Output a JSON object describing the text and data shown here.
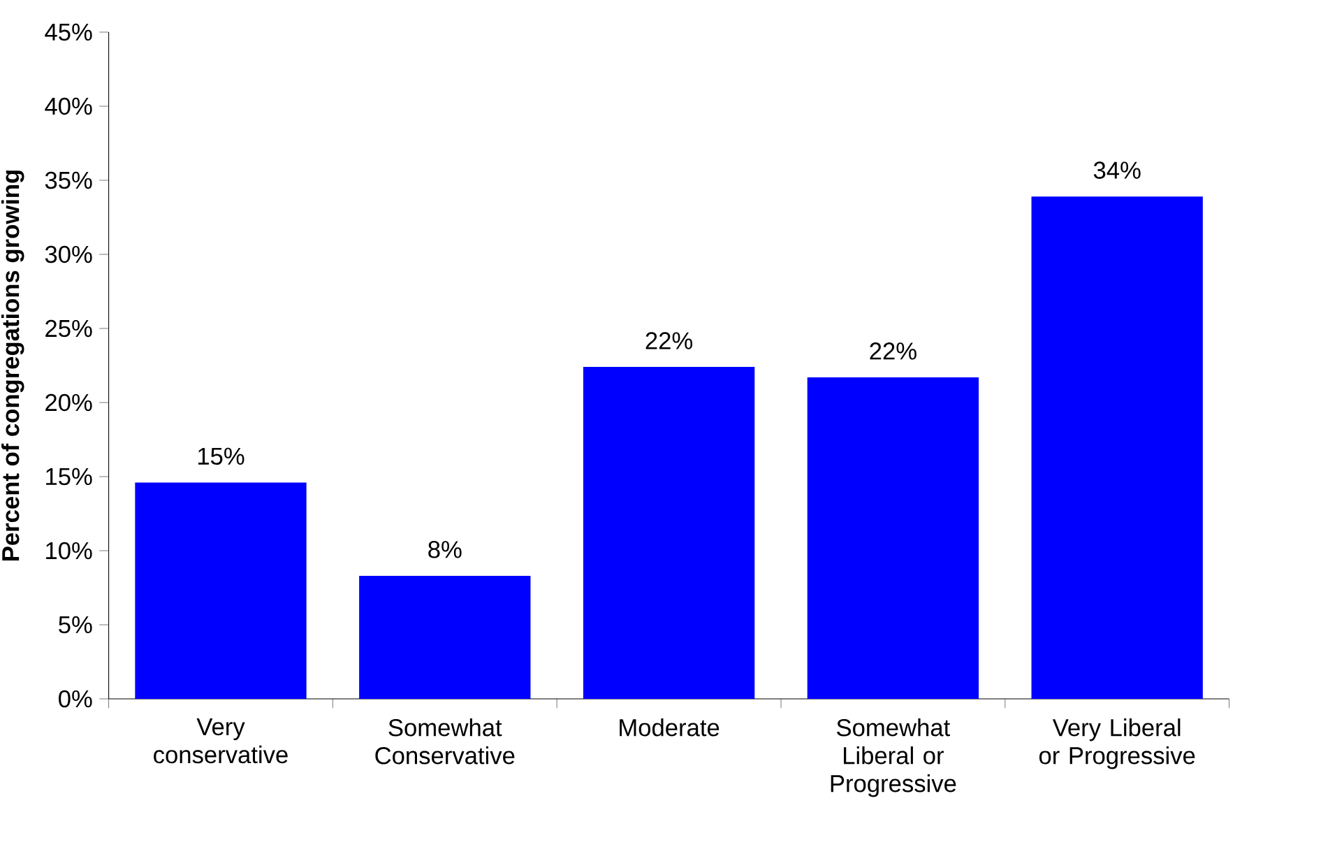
{
  "chart_data": {
    "type": "bar",
    "ylabel": "Percent of congregations growing",
    "categories": [
      "Very conservative",
      "Somewhat Conservative",
      "Moderate",
      "Somewhat Liberal or Progressive",
      "Very Liberal or Progressive"
    ],
    "values": [
      14.6,
      8.3,
      22.4,
      21.7,
      33.9
    ],
    "value_labels": [
      "15%",
      "8%",
      "22%",
      "22%",
      "34%"
    ],
    "color": "#0000ff",
    "ylim": [
      0,
      45
    ],
    "yticks": [
      {
        "value": 0,
        "label": "0%"
      },
      {
        "value": 5,
        "label": "5%"
      },
      {
        "value": 10,
        "label": "10%"
      },
      {
        "value": 15,
        "label": "15%"
      },
      {
        "value": 20,
        "label": "20%"
      },
      {
        "value": 25,
        "label": "25%"
      },
      {
        "value": 30,
        "label": "30%"
      },
      {
        "value": 35,
        "label": "35%"
      },
      {
        "value": 40,
        "label": "40%"
      },
      {
        "value": 45,
        "label": "45%"
      }
    ]
  }
}
